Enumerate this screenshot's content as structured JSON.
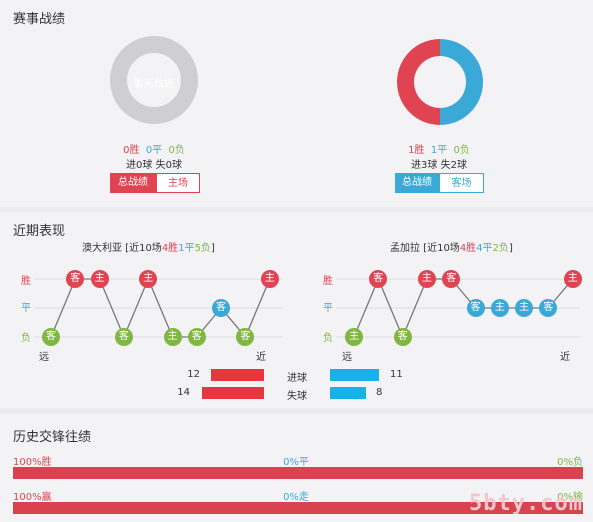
{
  "sections": {
    "record_title": "赛事战绩",
    "recent_title": "近期表现",
    "history_title": "历史交锋往绩"
  },
  "left_team": {
    "empty_text": "暂无数据",
    "win": "0胜",
    "draw": "0平",
    "loss": "0负",
    "goals_line": "进0球 失0球",
    "tab_total": "总战绩",
    "tab_venue": "主场",
    "donut": {
      "win": 0,
      "draw": 0,
      "loss": 0
    }
  },
  "right_team": {
    "win": "1胜",
    "draw": "1平",
    "loss": "0负",
    "goals_line": "进3球 失2球",
    "tab_total": "总战绩",
    "tab_venue": "客场",
    "donut": {
      "win": 1,
      "draw": 1,
      "loss": 0
    }
  },
  "recent": {
    "left": {
      "header_prefix": "澳大利亚 [近10场",
      "wins": "4胜",
      "draws": "1平",
      "losses": "5负",
      "header_suffix": "]",
      "axis_win": "胜",
      "axis_draw": "平",
      "axis_loss": "负",
      "far": "远",
      "near": "近",
      "matches": [
        {
          "result": "L",
          "venue": "客"
        },
        {
          "result": "W",
          "venue": "客"
        },
        {
          "result": "W",
          "venue": "主"
        },
        {
          "result": "L",
          "venue": "客"
        },
        {
          "result": "W",
          "venue": "主"
        },
        {
          "result": "L",
          "venue": "主"
        },
        {
          "result": "L",
          "venue": "客"
        },
        {
          "result": "D",
          "venue": "客"
        },
        {
          "result": "L",
          "venue": "客"
        },
        {
          "result": "W",
          "venue": "主"
        }
      ]
    },
    "right": {
      "header_prefix": "孟加拉 [近10场",
      "wins": "4胜",
      "draws": "4平",
      "losses": "2负",
      "header_suffix": "]",
      "axis_win": "胜",
      "axis_draw": "平",
      "axis_loss": "负",
      "far": "远",
      "near": "近",
      "matches": [
        {
          "result": "L",
          "venue": "主"
        },
        {
          "result": "W",
          "venue": "客"
        },
        {
          "result": "L",
          "venue": "客"
        },
        {
          "result": "W",
          "venue": "主"
        },
        {
          "result": "W",
          "venue": "客"
        },
        {
          "result": "D",
          "venue": "客"
        },
        {
          "result": "D",
          "venue": "主"
        },
        {
          "result": "D",
          "venue": "主"
        },
        {
          "result": "D",
          "venue": "客"
        },
        {
          "result": "W",
          "venue": "主"
        }
      ]
    },
    "goals_label": "进球",
    "conceded_label": "失球",
    "left_goals": 12,
    "left_conceded": 14,
    "right_goals": 11,
    "right_conceded": 8
  },
  "history": {
    "row1_left": "100%胜",
    "row1_mid": "0%平",
    "row1_right": "0%负",
    "row1_fill": 1.0,
    "row2_left": "100%赢",
    "row2_mid": "0%走",
    "row2_right": "0%输",
    "row2_fill": 1.0
  },
  "watermark": "5bty.com",
  "colors": {
    "win": "#e04452",
    "draw": "#3aa9d8",
    "loss": "#7fb742",
    "bar_red": "#e8363f",
    "bar_blue": "#1ab0ea",
    "history_red": "#d9434f"
  }
}
